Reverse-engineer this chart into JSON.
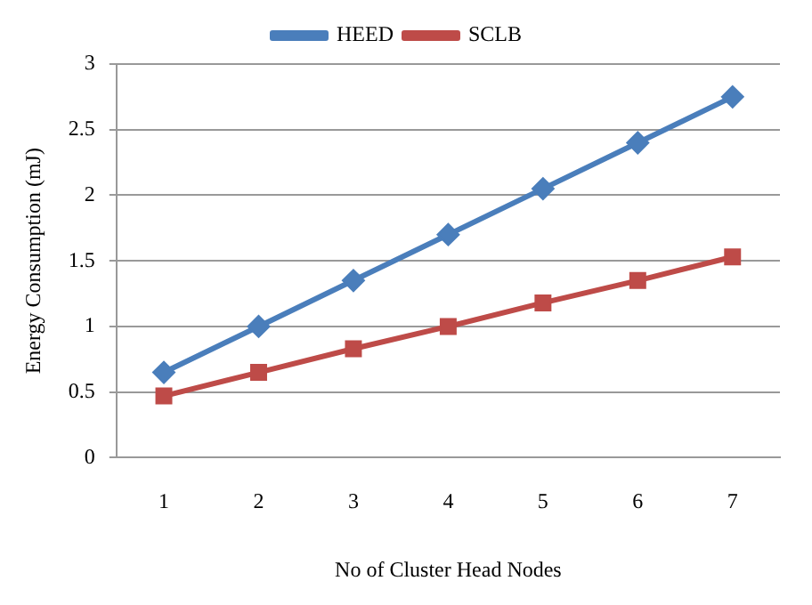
{
  "chart_data": {
    "type": "line",
    "xlabel": "No of Cluster Head Nodes",
    "ylabel": "Energy Consumption (mJ)",
    "categories": [
      "1",
      "2",
      "3",
      "4",
      "5",
      "6",
      "7"
    ],
    "series": [
      {
        "name": "HEED",
        "color": "#4a7ebb",
        "marker": "diamond",
        "values": [
          0.65,
          1.0,
          1.35,
          1.7,
          2.05,
          2.4,
          2.75
        ]
      },
      {
        "name": "SCLB",
        "color": "#be4b48",
        "marker": "square",
        "values": [
          0.47,
          0.65,
          0.83,
          1.0,
          1.18,
          1.35,
          1.53
        ]
      }
    ],
    "ylim": [
      0,
      3
    ],
    "yticks": [
      0,
      0.5,
      1,
      1.5,
      2,
      2.5,
      3
    ],
    "grid": "y",
    "legend": "top",
    "line_style": "solid"
  }
}
